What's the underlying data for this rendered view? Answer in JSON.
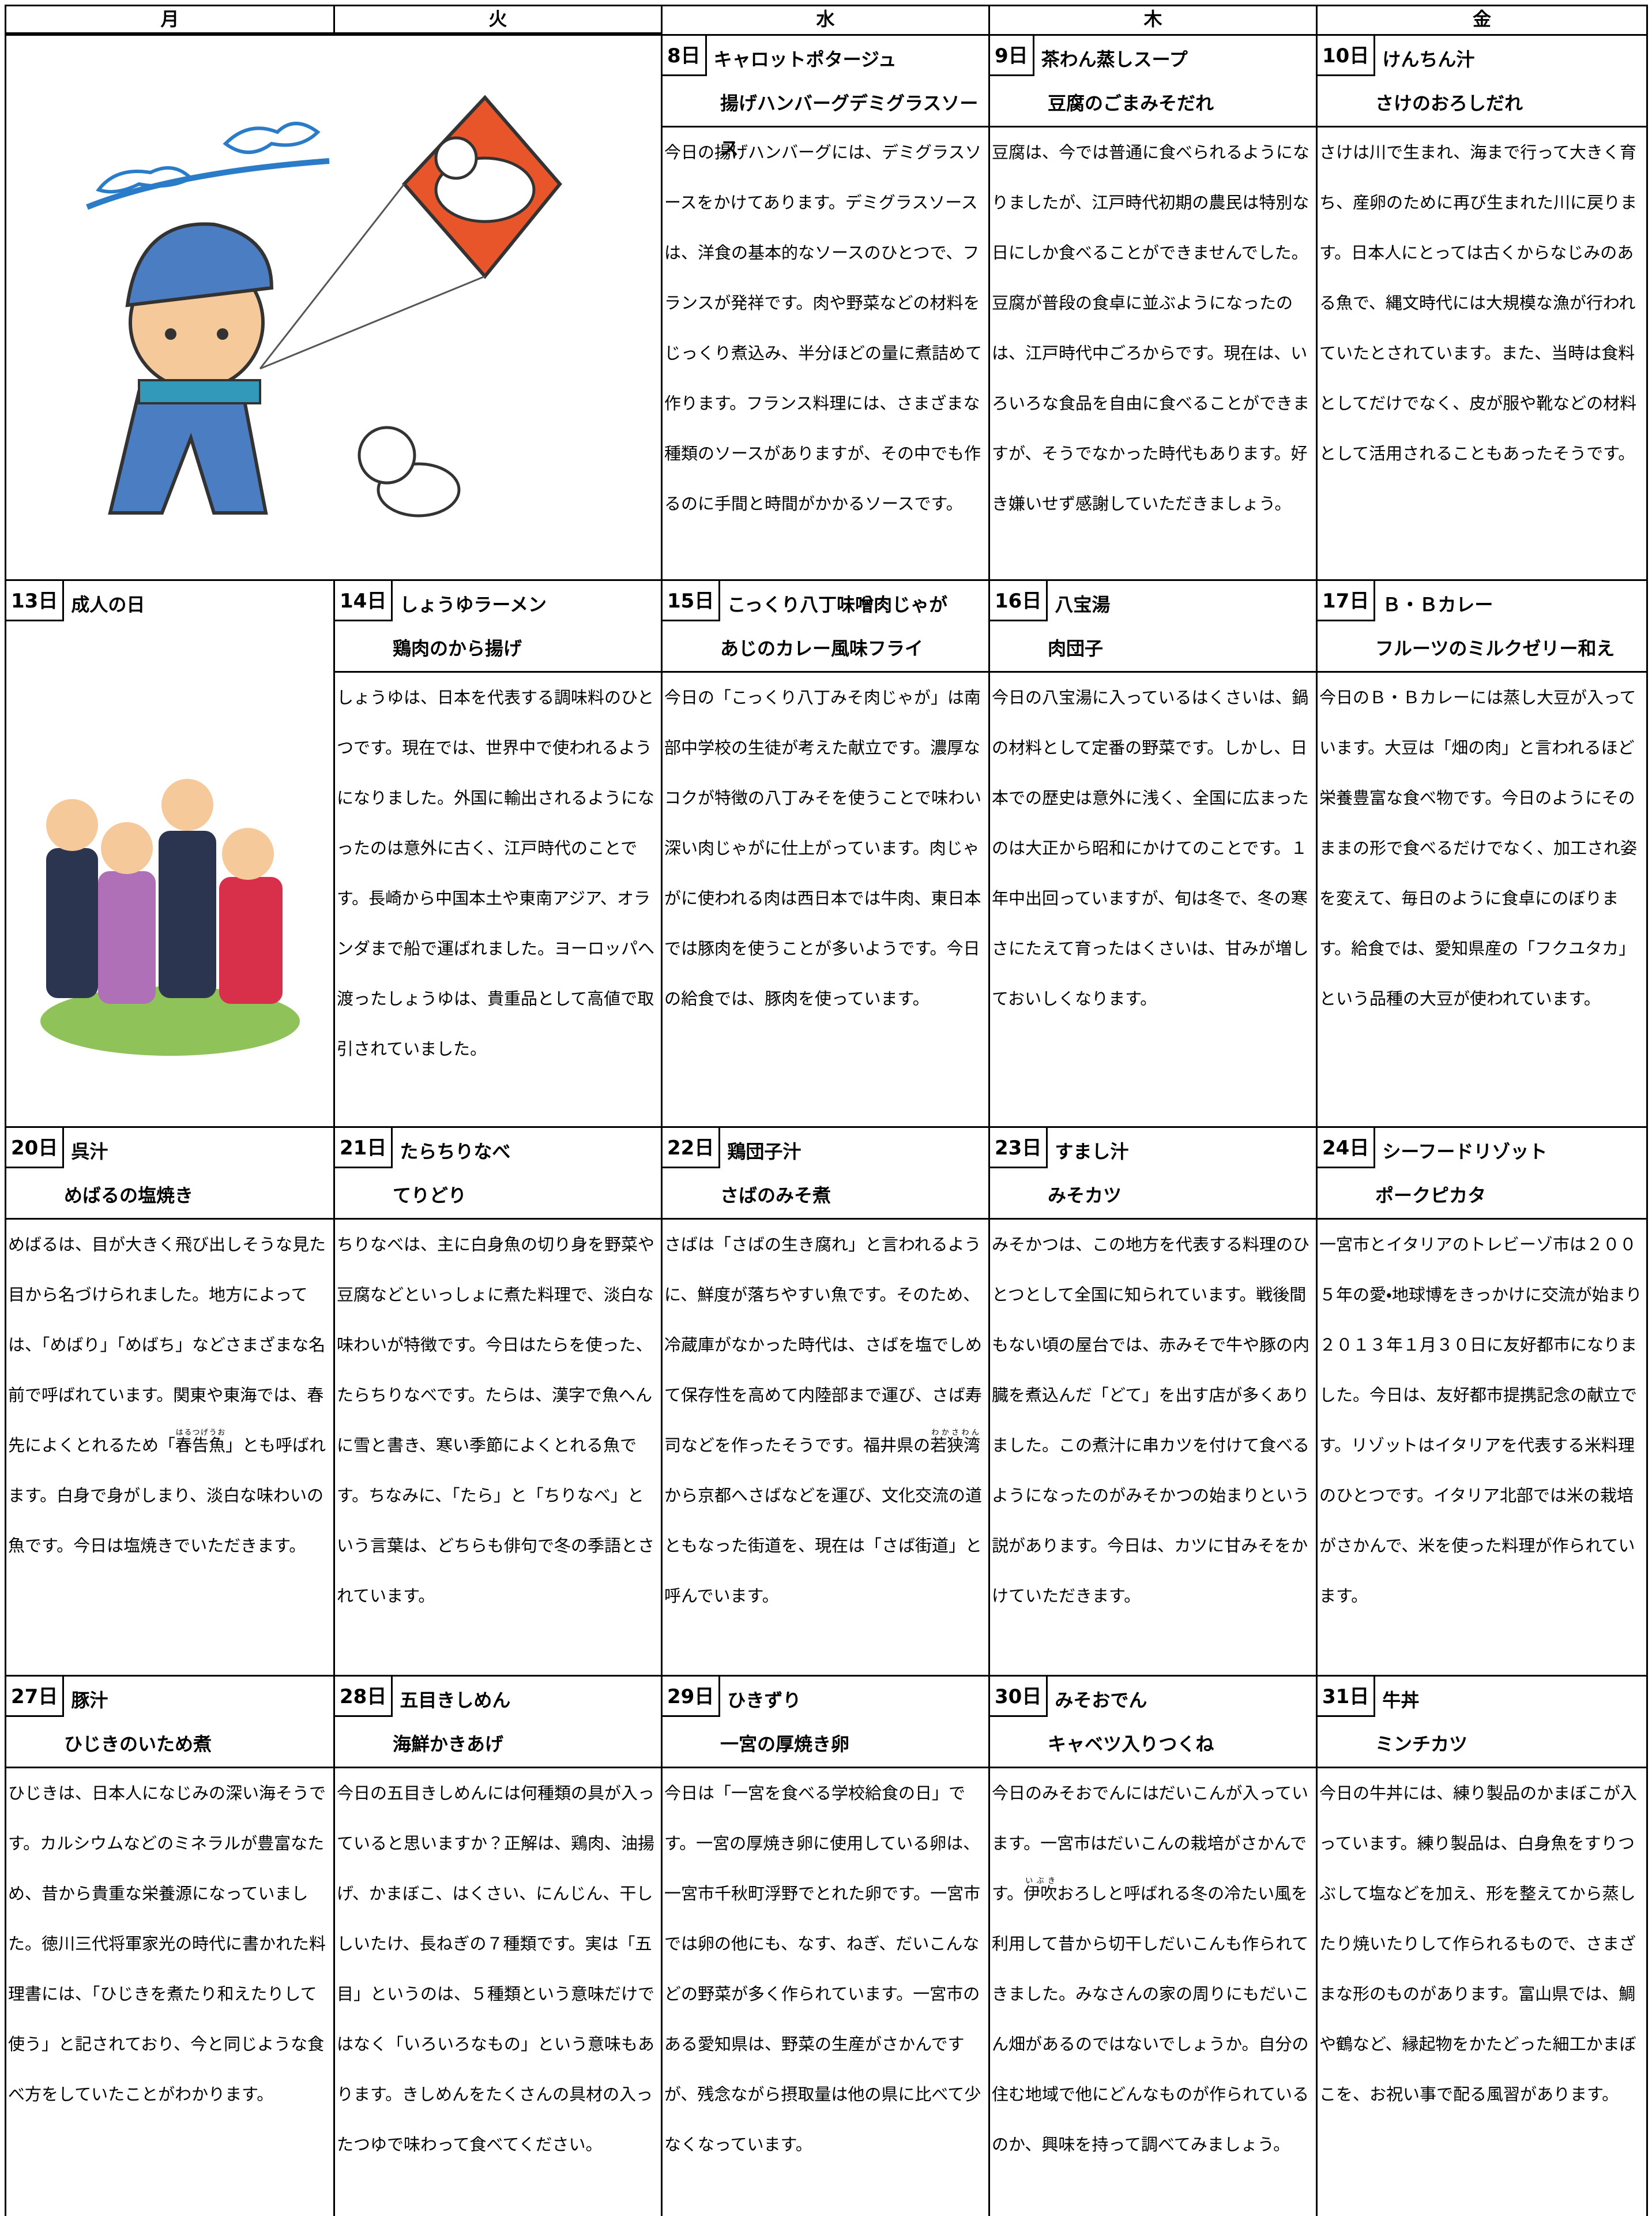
{
  "header": {
    "days": [
      "月",
      "火",
      "水",
      "木",
      "金"
    ]
  },
  "weeks": [
    {
      "cells": [
        {
          "day": "8日",
          "dish": "キャロットポタージュ",
          "side": "揚げハンバーグデミグラスソース",
          "text": "今日の揚げハンバーグには、デミグラスソースをかけてあります。デミグラスソースは、洋食の基本的なソースのひとつで、フランスが発祥です。肉や野菜などの材料をじっくり煮込み、半分ほどの量に煮詰めて作ります。フランス料理には、さまざまな種類のソースがありますが、その中でも作るのに手間と時間がかかるソースです。"
        },
        {
          "day": "9日",
          "dish": "茶わん蒸しスープ",
          "side": "豆腐のごまみそだれ",
          "text": "豆腐は、今では普通に食べられるようになりましたが、江戸時代初期の農民は特別な日にしか食べることができませんでした。豆腐が普段の食卓に並ぶようになったのは、江戸時代中ごろからです。現在は、いろいろな食品を自由に食べることができますが、そうでなかった時代もあります。好き嫌いせず感謝していただきましょう。"
        },
        {
          "day": "10日",
          "dish": "けんちん汁",
          "side": "さけのおろしだれ",
          "text": "さけは川で生まれ、海まで行って大きく育ち、産卵のために再び生まれた川に戻ります。日本人にとっては古くからなじみのある魚で、縄文時代には大規模な漁が行われていたとされています。また、当時は食料としてだけでなく、皮が服や靴などの材料として活用されることもあったそうです。"
        }
      ]
    },
    {
      "cells": [
        {
          "day": "13日",
          "dish": "成人の日"
        },
        {
          "day": "14日",
          "dish": "しょうゆラーメン",
          "side": "鶏肉のから揚げ",
          "text": "しょうゆは、日本を代表する調味料のひとつです。現在では、世界中で使われるようになりました。外国に輸出されるようになったのは意外に古く、江戸時代のことです。長崎から中国本土や東南アジア、オランダまで船で運ばれました。ヨーロッパへ渡ったしょうゆは、貴重品として高値で取引されていました。"
        },
        {
          "day": "15日",
          "dish": "こっくり八丁味噌肉じゃが",
          "side": "あじのカレー風味フライ",
          "text": "今日の「こっくり八丁みそ肉じゃが」は南部中学校の生徒が考えた献立です。濃厚なコクが特徴の八丁みそを使うことで味わい深い肉じゃがに仕上がっています。肉じゃがに使われる肉は西日本では牛肉、東日本では豚肉を使うことが多いようです。今日の給食では、豚肉を使っています。"
        },
        {
          "day": "16日",
          "dish": "八宝湯",
          "side": "肉団子",
          "text": "今日の八宝湯に入っているはくさいは、鍋の材料として定番の野菜です。しかし、日本での歴史は意外に浅く、全国に広まったのは大正から昭和にかけてのことです。１年中出回っていますが、旬は冬で、冬の寒さにたえて育ったはくさいは、甘みが増しておいしくなります。"
        },
        {
          "day": "17日",
          "dish": "Ｂ・Ｂカレー",
          "side": "フルーツのミルクゼリー和え",
          "text": "今日のＢ・Ｂカレーには蒸し大豆が入っています。大豆は「畑の肉」と言われるほど栄養豊富な食べ物です。今日のようにそのままの形で食べるだけでなく、加工され姿を変えて、毎日のように食卓にのぼります。給食では、愛知県産の「フクユタカ」という品種の大豆が使われています。"
        }
      ]
    },
    {
      "cells": [
        {
          "day": "20日",
          "dish": "呉汁",
          "side": "めばるの塩焼き",
          "text": [
            "めばるは、目が大きく飛び出しそうな見た目から名づけられました。地方によっては、「めばり」「めばち」などさまざまな名前で呼ばれています。関東や東海では、春先によくとれるため「",
            {
              "base": "春告魚",
              "ruby": "はるつげうお"
            },
            "」とも呼ばれます。白身で身がしまり、淡白な味わいの魚です。今日は塩焼きでいただきます。"
          ]
        },
        {
          "day": "21日",
          "dish": "たらちりなべ",
          "side": "てりどり",
          "text": "ちりなべは、主に白身魚の切り身を野菜や豆腐などといっしょに煮た料理で、淡白な味わいが特徴です。今日はたらを使った、たらちりなべです。たらは、漢字で魚へんに雪と書き、寒い季節によくとれる魚です。ちなみに、「たら」と「ちりなべ」という言葉は、どちらも俳句で冬の季語とされています。"
        },
        {
          "day": "22日",
          "dish": "鶏団子汁",
          "side": "さばのみそ煮",
          "text": [
            "さばは「さばの生き腐れ」と言われるように、鮮度が落ちやすい魚です。そのため、冷蔵庫がなかった時代は、さばを塩でしめて保存性を高めて内陸部まで運び、さば寿司などを作ったそうです。福井県の",
            {
              "base": "若狭湾",
              "ruby": "わかさわん"
            },
            "から京都へさばなどを運び、文化交流の道ともなった街道を、現在は「さば街道」と呼んでいます。"
          ]
        },
        {
          "day": "23日",
          "dish": "すまし汁",
          "side": "みそカツ",
          "text": "みそかつは、この地方を代表する料理のひとつとして全国に知られています。戦後間もない頃の屋台では、赤みそで牛や豚の内臓を煮込んだ「どて」を出す店が多くありました。この煮汁に串カツを付けて食べるようになったのがみそかつの始まりという説があります。今日は、カツに甘みそをかけていただきます。"
        },
        {
          "day": "24日",
          "dish": "シーフードリゾット",
          "side": "ポークピカタ",
          "text": "一宮市とイタリアのトレビーゾ市は２００５年の愛・地球博をきっかけに交流が始まり２０１３年１月３０日に友好都市になりました。今日は、友好都市提携記念の献立です。リゾットはイタリアを代表する米料理のひとつです。イタリア北部では米の栽培がさかんで、米を使った料理が作られています。"
        }
      ]
    },
    {
      "cells": [
        {
          "day": "27日",
          "dish": "豚汁",
          "side": "ひじきのいため煮",
          "text": "ひじきは、日本人になじみの深い海そうです。カルシウムなどのミネラルが豊富なため、昔から貴重な栄養源になっていました。徳川三代将軍家光の時代に書かれた料理書には、「ひじきを煮たり和えたりして使う」と記されており、今と同じような食べ方をしていたことがわかります。"
        },
        {
          "day": "28日",
          "dish": "五目きしめん",
          "side": "海鮮かきあげ",
          "text": "今日の五目きしめんには何種類の具が入っていると思いますか？正解は、鶏肉、油揚げ、かまぼこ、はくさい、にんじん、干ししいたけ、長ねぎの７種類です。実は「五目」というのは、５種類という意味だけではなく「いろいろなもの」という意味もあります。きしめんをたくさんの具材の入ったつゆで味わって食べてください。"
        },
        {
          "day": "29日",
          "dish": "ひきずり",
          "side": "一宮の厚焼き卵",
          "text": "今日は「一宮を食べる学校給食の日」です。一宮の厚焼き卵に使用している卵は、一宮市千秋町浮野でとれた卵です。一宮市では卵の他にも、なす、ねぎ、だいこんなどの野菜が多く作られています。一宮市のある愛知県は、野菜の生産がさかんですが、残念ながら摂取量は他の県に比べて少なくなっています。"
        },
        {
          "day": "30日",
          "dish": "みそおでん",
          "side": "キャベツ入りつくね",
          "text": [
            "今日のみそおでんにはだいこんが入っています。一宮市はだいこんの栽培がさかんです。",
            {
              "base": "伊吹",
              "ruby": "いぶき"
            },
            "おろしと呼ばれる冬の冷たい風を利用して昔から切干しだいこんも作られてきました。みなさんの家の周りにもだいこん畑があるのではないでしょうか。自分の住む地域で他にどんなものが作られているのか、興味を持って調べてみましょう。"
          ]
        },
        {
          "day": "31日",
          "dish": "牛丼",
          "side": "ミンチカツ",
          "text": "今日の牛丼には、練り製品のかまぼこが入っています。練り製品は、白身魚をすりつぶして塩などを加え、形を整えてから蒸したり焼いたりして作られるもので、さまざまな形のものがあります。富山県では、鯛や鶴など、縁起物をかたどった細工かまぼこを、お祝い事で配る風習があります。"
        }
      ]
    }
  ]
}
